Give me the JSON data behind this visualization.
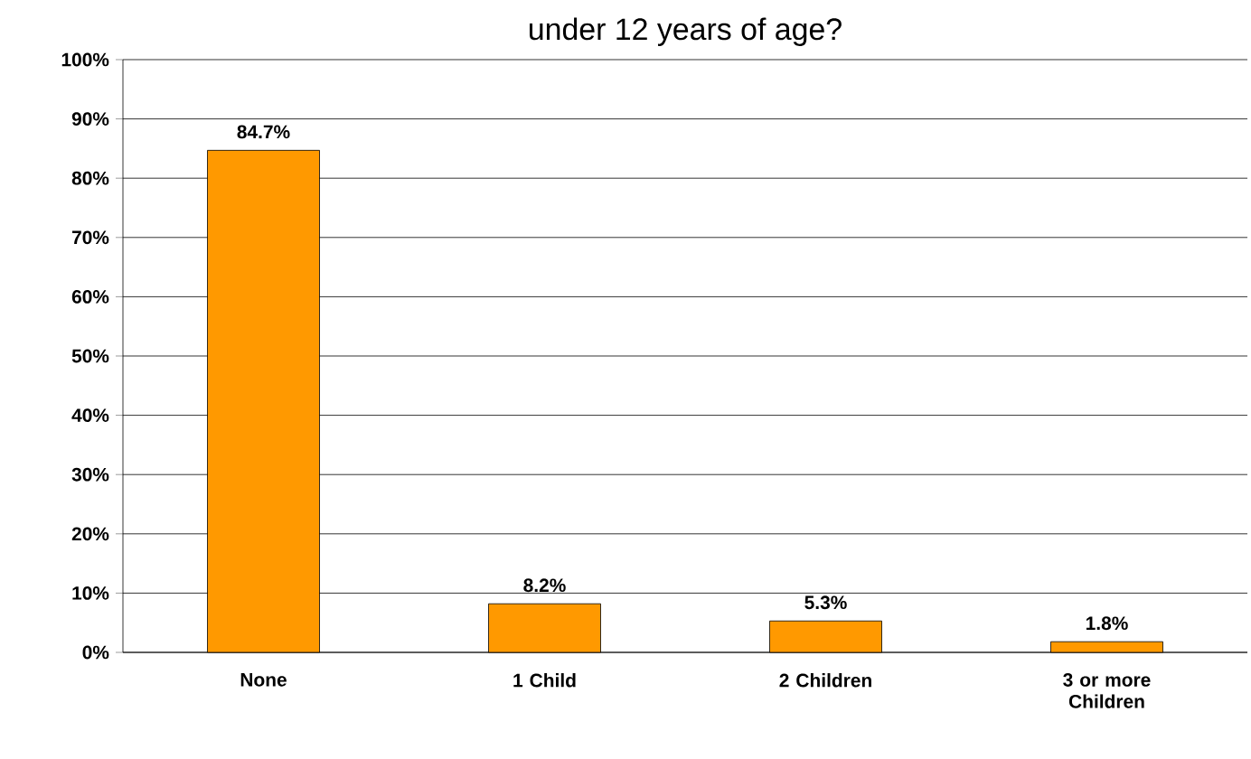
{
  "chart_data": {
    "type": "bar",
    "title": "under 12 years of age?",
    "categories": [
      "None",
      "1 Child",
      "2 Children",
      "3 or more Children"
    ],
    "values": [
      84.7,
      8.2,
      5.3,
      1.8
    ],
    "value_labels": [
      "84.7%",
      "8.2%",
      "5.3%",
      "1.8%"
    ],
    "color": "#ff9900",
    "ylim": [
      0,
      100
    ],
    "yticks": [
      {
        "value": 0,
        "label": "0%"
      },
      {
        "value": 10,
        "label": "10%"
      },
      {
        "value": 20,
        "label": "20%"
      },
      {
        "value": 30,
        "label": "30%"
      },
      {
        "value": 40,
        "label": "40%"
      },
      {
        "value": 50,
        "label": "50%"
      },
      {
        "value": 60,
        "label": "60%"
      },
      {
        "value": 70,
        "label": "70%"
      },
      {
        "value": 80,
        "label": "80%"
      },
      {
        "value": 90,
        "label": "90%"
      },
      {
        "value": 100,
        "label": "100%"
      }
    ],
    "grid": "y"
  }
}
